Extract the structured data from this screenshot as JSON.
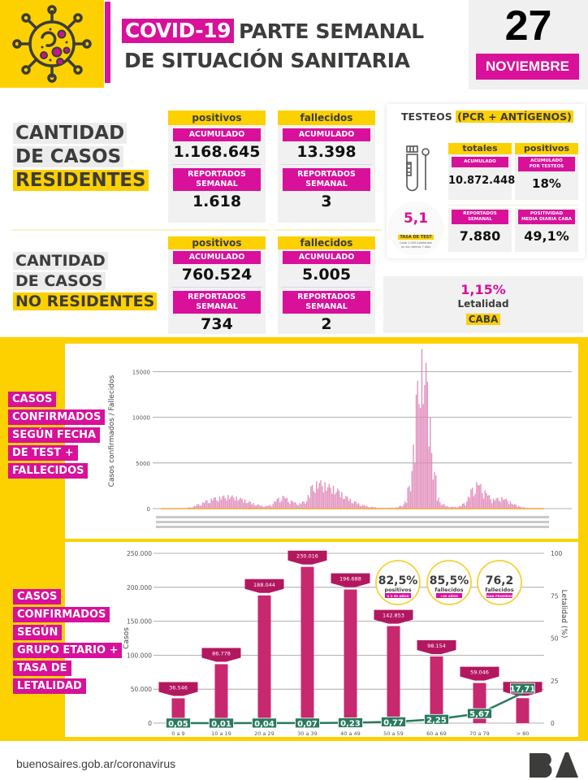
{
  "header": {
    "title_highlight": "COVID-19",
    "title_line1_rest": "PARTE SEMANAL",
    "title_line2": "DE SITUACIÓN SANITARIA",
    "date_day": "27",
    "date_month": "NOVIEMBRE",
    "logo_icon": "virus-icon"
  },
  "residentes": {
    "title": [
      "CANTIDAD",
      "DE CASOS",
      "RESIDENTES"
    ],
    "positivos": {
      "head": "positivos",
      "acum_label": "ACUMULADO",
      "acum_value": "1.168.645",
      "sem_label_1": "REPORTADOS",
      "sem_label_2": "SEMANAL",
      "sem_value": "1.618"
    },
    "fallecidos": {
      "head": "fallecidos",
      "acum_label": "ACUMULADO",
      "acum_value": "13.398",
      "sem_label_1": "REPORTADOS",
      "sem_label_2": "SEMANAL",
      "sem_value": "3"
    }
  },
  "no_residentes": {
    "title": [
      "CANTIDAD",
      "DE CASOS",
      "NO RESIDENTES"
    ],
    "positivos": {
      "head": "positivos",
      "acum_label": "ACUMULADO",
      "acum_value": "760.524",
      "sem_label_1": "REPORTADOS",
      "sem_label_2": "SEMANAL",
      "sem_value": "734"
    },
    "fallecidos": {
      "head": "fallecidos",
      "acum_label": "ACUMULADO",
      "acum_value": "5.005",
      "sem_label_1": "REPORTADOS",
      "sem_label_2": "SEMANAL",
      "sem_value": "2"
    }
  },
  "testeos": {
    "title_plain": "TESTEOS",
    "title_highlight": "(PCR + ANTÍGENOS)",
    "icon": "test-tube-swab-icon",
    "totales_head": "totales",
    "positivos_head": "positivos",
    "acum_label": "ACUMULADO",
    "acum_value": "10.872.448",
    "acum_pos_label_1": "ACUMULADO",
    "acum_pos_label_2": "POR TESTEOS",
    "acum_pos_value": "18%",
    "sem_label_1": "REPORTADOS",
    "sem_label_2": "SEMANAL",
    "sem_value": "7.880",
    "posit_label_1": "POSITIVIDAD",
    "posit_label_2": "MEDIA DIARIA CABA",
    "posit_value": "49,1%",
    "tasa_value": "5,1",
    "tasa_label": "TASA DE TEST",
    "tasa_sub_1": "Cada 1.000 habitantes",
    "tasa_sub_2": "en los últimos 7 días"
  },
  "letalidad": {
    "value": "1,15%",
    "label": "Letalidad",
    "region": "CABA"
  },
  "side_labels": {
    "chart1": [
      "CASOS",
      "CONFIRMADOS",
      "SEGÚN FECHA",
      "DE TEST +",
      "FALLECIDOS"
    ],
    "chart2": [
      "CASOS",
      "CONFIRMADOS",
      "SEGÚN",
      "GRUPO ETARIO +",
      "TASA DE",
      "LETALIDAD"
    ]
  },
  "chart_data": [
    {
      "type": "area",
      "title": "Casos confirmados según fecha de test + fallecidos",
      "xlabel": "",
      "ylabel": "Casos confirmados / Fallecidos",
      "ylim": [
        0,
        17000
      ],
      "yticks": [
        0,
        5000,
        10000,
        15000
      ],
      "grid": true,
      "x_tick_labels_legible": false,
      "series": [
        {
          "name": "Casos confirmados",
          "color": "#e088b8",
          "note": "daily values approximated from envelope; x = sample index across period",
          "values": [
            0,
            0,
            0,
            0,
            0,
            0,
            50,
            150,
            300,
            500,
            700,
            900,
            1100,
            1250,
            1350,
            1450,
            1500,
            1450,
            1350,
            1200,
            1000,
            800,
            600,
            450,
            350,
            300,
            400,
            800,
            1200,
            1400,
            1200,
            900,
            700,
            600,
            800,
            1500,
            2600,
            3000,
            3100,
            2900,
            2700,
            2500,
            2200,
            1800,
            1400,
            1100,
            800,
            600,
            400,
            300,
            200,
            150,
            100,
            80,
            80,
            100,
            150,
            300,
            800,
            2500,
            7000,
            14000,
            17500,
            16000,
            10000,
            4000,
            1200,
            500,
            300,
            200,
            200,
            300,
            600,
            1300,
            2300,
            2900,
            2700,
            2000,
            1500,
            1100,
            1200,
            1300,
            1100,
            800,
            500,
            300,
            150,
            80,
            50,
            30,
            20,
            10
          ]
        },
        {
          "name": "Fallecidos",
          "color": "#f2a53a",
          "values_max": 60
        }
      ]
    },
    {
      "type": "bar",
      "title": "Casos confirmados según grupo etario + tasa de letalidad",
      "categories": [
        "0 a 9",
        "10 a 19",
        "20 a 29",
        "30 a 39",
        "40 a 49",
        "50 a 59",
        "60 a 69",
        "70 a 79",
        "> 80"
      ],
      "series": [
        {
          "name": "Casos",
          "color": "#c8286e",
          "axis": "left",
          "values": [
            36546,
            86778,
            188044,
            230016,
            196688,
            142853,
            98154,
            59046,
            36785
          ],
          "labels": [
            "36.546",
            "86.778",
            "188.044",
            "230.016",
            "196.688",
            "142.853",
            "98.154",
            "59.046",
            "36.785"
          ]
        },
        {
          "name": "Letalidad (%)",
          "type": "line",
          "color": "#2a7a5e",
          "axis": "right",
          "values": [
            0.05,
            0.01,
            0.04,
            0.07,
            0.23,
            0.77,
            2.25,
            5.67,
            17.71
          ],
          "labels": [
            "0,05",
            "0,01",
            "0,04",
            "0,07",
            "0,23",
            "0,77",
            "2,25",
            "5,67",
            "17,71"
          ]
        }
      ],
      "ylabel": "Casos",
      "ylim": [
        0,
        250000
      ],
      "yticks": [
        0,
        50000,
        100000,
        150000,
        200000,
        250000
      ],
      "ytick_labels": [
        "0",
        "50.000",
        "100.000",
        "150.000",
        "200.000",
        "250.000"
      ],
      "y2label": "Letalidad (%)",
      "y2lim": [
        0,
        100
      ],
      "y2ticks": [
        0,
        25,
        50,
        75,
        100
      ],
      "grid": true,
      "annotations": [
        {
          "value": "82,5%",
          "label": "positivos",
          "sub": "0 A 59 AÑOS"
        },
        {
          "value": "85,5%",
          "label": "fallecidos",
          "sub": "+60 AÑOS"
        },
        {
          "value": "76,2",
          "label": "fallecidos",
          "sub": "EDAD PROMEDIO"
        }
      ]
    }
  ],
  "footer": {
    "url": "buenosaires.gob.ar/coronavirus",
    "logo": "BA"
  },
  "colors": {
    "magenta": "#d8109a",
    "yellow": "#fdd000",
    "dark": "#3c3c3b",
    "bar": "#c8286e",
    "line": "#2a7a5e"
  }
}
